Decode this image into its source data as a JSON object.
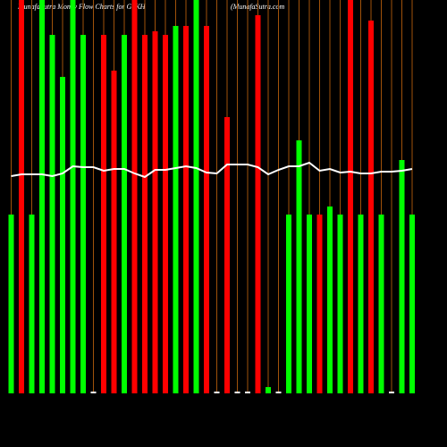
{
  "chart_data": {
    "type": "bar",
    "title": "MunafaSutra  Money Flow  Charts for GSKH",
    "subtitle": "(MunafaSutra.com",
    "values": [
      200,
      440,
      200,
      440,
      401,
      354,
      440,
      401,
      2,
      401,
      361,
      401,
      440,
      401,
      405,
      401,
      411,
      411,
      440,
      411,
      2,
      309,
      2,
      2,
      423,
      7,
      2,
      200,
      283,
      200,
      200,
      209,
      200,
      440,
      200,
      417,
      200,
      2,
      261,
      200
    ],
    "colors": [
      "#00ff00",
      "#ff0000",
      "#00ff00",
      "#00ff00",
      "#00ff00",
      "#00ff00",
      "#00ff00",
      "#00ff00",
      "#ffffff",
      "#ff0000",
      "#ff0000",
      "#00ff00",
      "#ff0000",
      "#ff0000",
      "#ff0000",
      "#ff0000",
      "#00ff00",
      "#ff0000",
      "#00ff00",
      "#ff0000",
      "#ffffff",
      "#ff0000",
      "#ffffff",
      "#ffffff",
      "#ff0000",
      "#00ff00",
      "#ffffff",
      "#00ff00",
      "#00ff00",
      "#00ff00",
      "#ff0000",
      "#00ff00",
      "#00ff00",
      "#ff0000",
      "#00ff00",
      "#ff0000",
      "#00ff00",
      "#ffffff",
      "#00ff00",
      "#00ff00"
    ],
    "line": {
      "color": "#ffffff",
      "values": [
        243,
        245,
        245,
        245,
        243,
        246,
        254,
        253,
        253,
        249,
        251,
        251,
        246,
        242,
        250,
        250,
        252,
        254,
        252,
        247,
        246,
        256,
        256,
        256,
        253,
        245,
        250,
        254,
        254,
        258,
        249,
        251,
        247,
        248,
        246,
        246,
        248,
        248,
        249,
        251
      ]
    },
    "ylim": [
      0,
      440
    ]
  }
}
